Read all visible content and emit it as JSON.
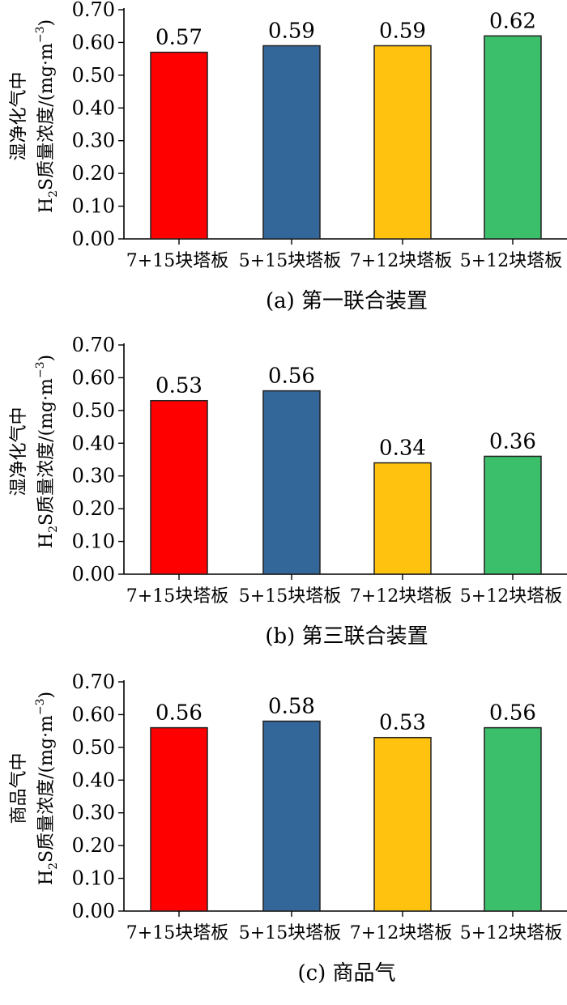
{
  "chart_data": [
    {
      "type": "bar",
      "caption": "(a) 第一联合装置",
      "ylabel_line1": "湿净化气中",
      "ylabel_line2": {
        "pre": "H",
        "sub": "2",
        "post": "S质量浓度/(mg·m",
        "sup": "−3",
        "close": ")"
      },
      "categories": [
        "7+15块塔板",
        "5+15块塔板",
        "7+12块塔板",
        "5+12块塔板"
      ],
      "values": [
        0.57,
        0.59,
        0.59,
        0.62
      ],
      "value_labels": [
        "0.57",
        "0.59",
        "0.59",
        "0.62"
      ],
      "colors": [
        "#ff0000",
        "#336699",
        "#ffc20e",
        "#3cbf6b"
      ],
      "ylim": [
        0,
        0.7
      ],
      "yticks": [
        "0.00",
        "0.10",
        "0.20",
        "0.30",
        "0.40",
        "0.50",
        "0.60",
        "0.70"
      ]
    },
    {
      "type": "bar",
      "caption": "(b) 第三联合装置",
      "ylabel_line1": "湿净化气中",
      "ylabel_line2": {
        "pre": "H",
        "sub": "2",
        "post": "S质量浓度/(mg·m",
        "sup": "−3",
        "close": ")"
      },
      "categories": [
        "7+15块塔板",
        "5+15块塔板",
        "7+12块塔板",
        "5+12块塔板"
      ],
      "values": [
        0.53,
        0.56,
        0.34,
        0.36
      ],
      "value_labels": [
        "0.53",
        "0.56",
        "0.34",
        "0.36"
      ],
      "colors": [
        "#ff0000",
        "#336699",
        "#ffc20e",
        "#3cbf6b"
      ],
      "ylim": [
        0,
        0.7
      ],
      "yticks": [
        "0.00",
        "0.10",
        "0.20",
        "0.30",
        "0.40",
        "0.50",
        "0.60",
        "0.70"
      ]
    },
    {
      "type": "bar",
      "caption": "(c) 商品气",
      "ylabel_line1": "商品气中",
      "ylabel_line2": {
        "pre": "H",
        "sub": "2",
        "post": "S质量浓度/(mg·m",
        "sup": "−3",
        "close": ")"
      },
      "categories": [
        "7+15块塔板",
        "5+15块塔板",
        "7+12块塔板",
        "5+12块塔板"
      ],
      "values": [
        0.56,
        0.58,
        0.53,
        0.56
      ],
      "value_labels": [
        "0.56",
        "0.58",
        "0.53",
        "0.56"
      ],
      "colors": [
        "#ff0000",
        "#336699",
        "#ffc20e",
        "#3cbf6b"
      ],
      "ylim": [
        0,
        0.7
      ],
      "yticks": [
        "0.00",
        "0.10",
        "0.20",
        "0.30",
        "0.40",
        "0.50",
        "0.60",
        "0.70"
      ]
    }
  ]
}
